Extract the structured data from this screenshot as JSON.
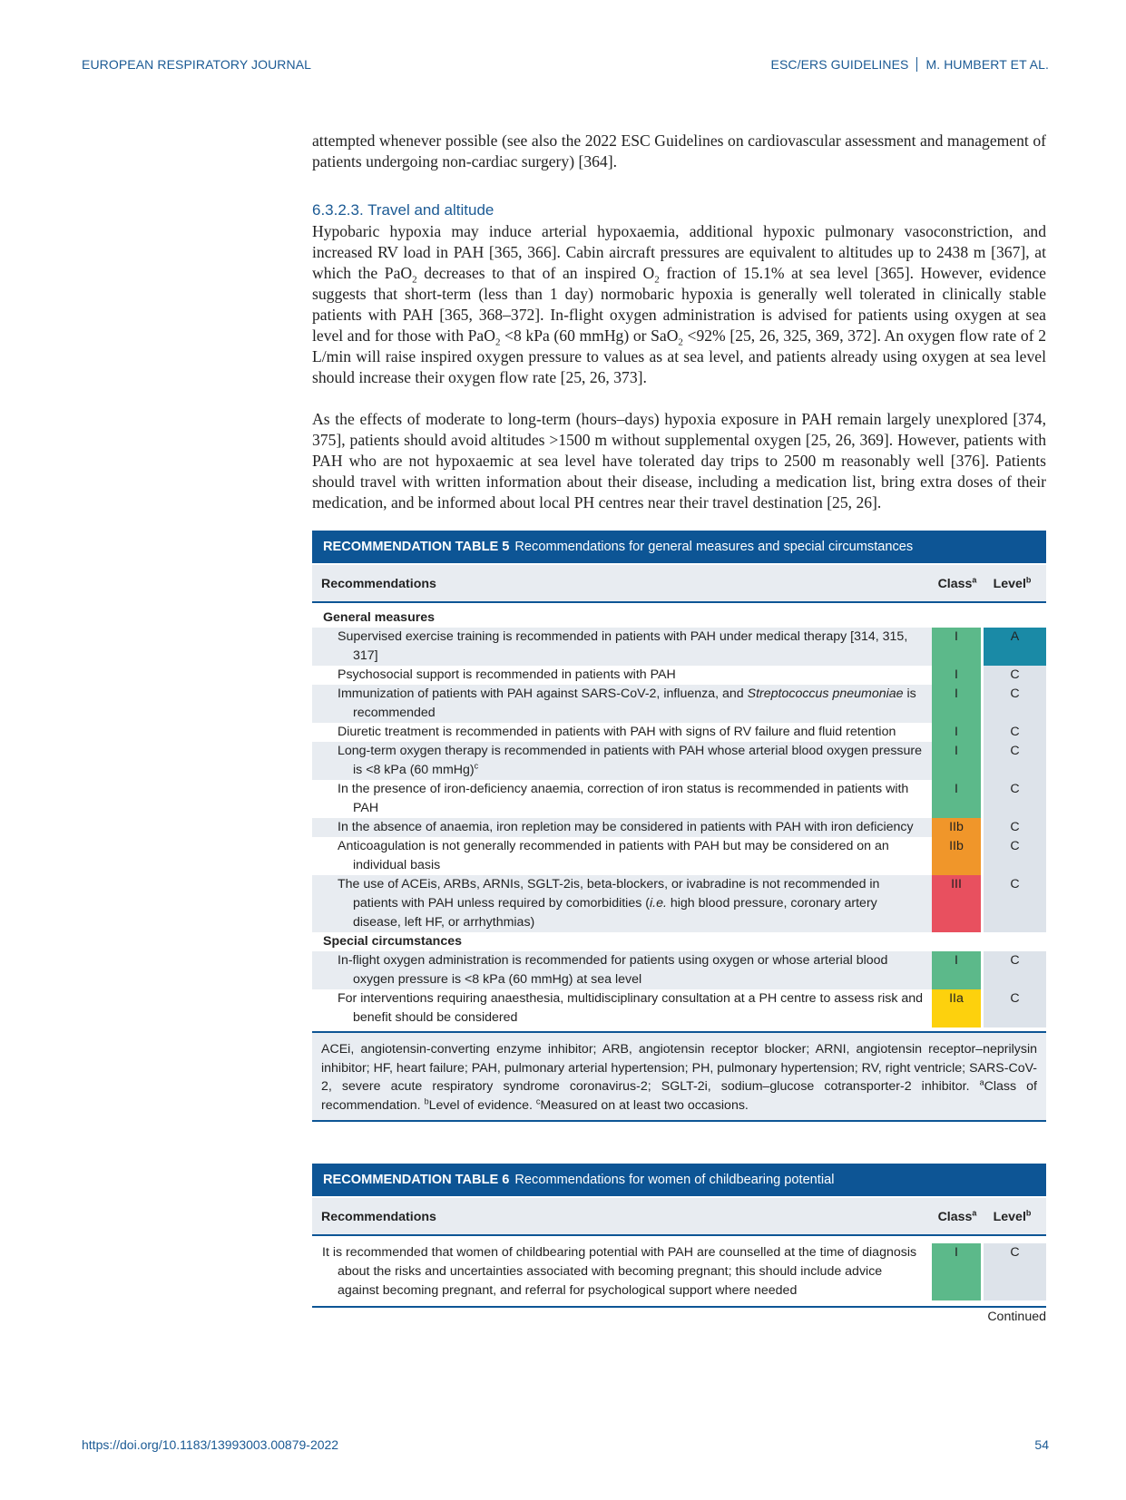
{
  "running_header": {
    "journal": "EUROPEAN RESPIRATORY JOURNAL",
    "section": "ESC/ERS GUIDELINES",
    "authors": "M. HUMBERT ET AL."
  },
  "body": {
    "para1": [
      {
        "t": "attempted whenever possible (see also the 2022 ESC Guidelines on cardiovascular assessment and management of patients undergoing non-cardiac surgery) [364]."
      }
    ],
    "heading": "6.3.2.3. Travel and altitude",
    "para2": [
      {
        "t": "Hypobaric hypoxia may induce arterial hypoxaemia, additional hypoxic pulmonary vasoconstriction, and increased RV load in PAH [365, 366]. Cabin aircraft pressures are equivalent to altitudes up to 2438 m [367], at which the PaO"
      },
      {
        "t": "2",
        "sub": true
      },
      {
        "t": " decreases to that of an inspired O"
      },
      {
        "t": "2",
        "sub": true
      },
      {
        "t": " fraction of 15.1% at sea level [365]. However, evidence suggests that short-term (less than 1 day) normobaric hypoxia is generally well tolerated in clinically stable patients with PAH [365, 368–372]. In-flight oxygen administration is advised for patients using oxygen at sea level and for those with PaO"
      },
      {
        "t": "2",
        "sub": true
      },
      {
        "t": " <8 kPa (60 mmHg) or SaO"
      },
      {
        "t": "2",
        "sub": true
      },
      {
        "t": " <92% [25, 26, 325, 369, 372]. An oxygen flow rate of 2 L/min will raise inspired oxygen pressure to values as at sea level, and patients already using oxygen at sea level should increase their oxygen flow rate [25, 26, 373]."
      }
    ],
    "para3": [
      {
        "t": "As the effects of moderate to long-term (hours–days) hypoxia exposure in PAH remain largely unexplored [374, 375], patients should avoid altitudes >1500 m without supplemental oxygen [25, 26, 369]. However, patients with PAH who are not hypoxaemic at sea level have tolerated day trips to 2500 m reasonably well [376]. Patients should travel with written information about their disease, including a medication list, bring extra doses of their medication, and be informed about local PH centres near their travel destination [25, 26]."
      }
    ]
  },
  "table5": {
    "label": "RECOMMENDATION TABLE 5",
    "title": "Recommendations for general measures and special circumstances",
    "col_recommendations": "Recommendations",
    "col_class": "Class",
    "col_class_sup": "a",
    "col_level": "Level",
    "col_level_sup": "b",
    "sections": [
      {
        "title": "General measures",
        "rows": [
          {
            "text": [
              {
                "t": "Supervised exercise training is recommended in patients with PAH under medical therapy [314, 315, 317]"
              }
            ],
            "class": "I",
            "level": "A"
          },
          {
            "text": [
              {
                "t": "Psychosocial support is recommended in patients with PAH"
              }
            ],
            "class": "I",
            "level": "C"
          },
          {
            "text": [
              {
                "t": "Immunization of patients with PAH against SARS-CoV-2, influenza, and "
              },
              {
                "t": "Streptococcus pneumoniae",
                "i": true
              },
              {
                "t": " is recommended"
              }
            ],
            "class": "I",
            "level": "C"
          },
          {
            "text": [
              {
                "t": "Diuretic treatment is recommended in patients with PAH with signs of RV failure and fluid retention"
              }
            ],
            "class": "I",
            "level": "C"
          },
          {
            "text": [
              {
                "t": "Long-term oxygen therapy is recommended in patients with PAH whose arterial blood oxygen pressure is <8 kPa (60 mmHg)"
              },
              {
                "t": "c",
                "sup": true
              }
            ],
            "class": "I",
            "level": "C"
          },
          {
            "text": [
              {
                "t": "In the presence of iron-deficiency anaemia, correction of iron status is recommended in patients with PAH"
              }
            ],
            "class": "I",
            "level": "C"
          },
          {
            "text": [
              {
                "t": "In the absence of anaemia, iron repletion may be considered in patients with PAH with iron deficiency"
              }
            ],
            "class": "IIb",
            "level": "C"
          },
          {
            "text": [
              {
                "t": "Anticoagulation is not generally recommended in patients with PAH but may be considered on an individual basis"
              }
            ],
            "class": "IIb",
            "level": "C"
          },
          {
            "text": [
              {
                "t": "The use of ACEis, ARBs, ARNIs, SGLT-2is, beta-blockers, or ivabradine is not recommended in patients with PAH unless required by comorbidities ("
              },
              {
                "t": "i.e.",
                "i": true
              },
              {
                "t": " high blood pressure, coronary artery disease, left HF, or arrhythmias)"
              }
            ],
            "class": "III",
            "level": "C"
          }
        ]
      },
      {
        "title": "Special circumstances",
        "rows": [
          {
            "text": [
              {
                "t": "In-flight oxygen administration is recommended for patients using oxygen or whose arterial blood oxygen pressure is <8 kPa (60 mmHg) at sea level"
              }
            ],
            "class": "I",
            "level": "C"
          },
          {
            "text": [
              {
                "t": "For interventions requiring anaesthesia, multidisciplinary consultation at a PH centre to assess risk and benefit should be considered"
              }
            ],
            "class": "IIa",
            "level": "C"
          }
        ]
      }
    ],
    "footnote": [
      {
        "t": "ACEi, angiotensin-converting enzyme inhibitor; ARB, angiotensin receptor blocker; ARNI, angiotensin receptor–neprilysin inhibitor; HF, heart failure; PAH, pulmonary arterial hypertension; PH, pulmonary hypertension; RV, right ventricle; SARS-CoV-2, severe acute respiratory syndrome coronavirus-2; SGLT-2i, sodium–glucose cotransporter-2 inhibitor. "
      },
      {
        "t": "a",
        "sup": true
      },
      {
        "t": "Class of recommendation. "
      },
      {
        "t": "b",
        "sup": true
      },
      {
        "t": "Level of evidence. "
      },
      {
        "t": "c",
        "sup": true
      },
      {
        "t": "Measured on at least two occasions."
      }
    ]
  },
  "table6": {
    "label": "RECOMMENDATION TABLE 6",
    "title": "Recommendations for women of childbearing potential",
    "col_recommendations": "Recommendations",
    "col_class": "Class",
    "col_class_sup": "a",
    "col_level": "Level",
    "col_level_sup": "b",
    "rows": [
      {
        "text": [
          {
            "t": "It is recommended that women of childbearing potential with PAH are counselled at the time of diagnosis about the risks and uncertainties associated with becoming pregnant; this should include advice against becoming pregnant, and referral for psychological support where needed"
          }
        ],
        "class": "I",
        "level": "C"
      }
    ],
    "continued": "Continued"
  },
  "footer": {
    "doi": "https://doi.org/10.1183/13993003.00879-2022",
    "page": "54"
  },
  "colors": {
    "brand_blue": "#0d5595",
    "class_I": "#5cb98a",
    "class_IIa": "#fdd10d",
    "class_IIb": "#f0962a",
    "class_III": "#e8505f",
    "level_A": "#1a8aa6",
    "level_default": "#dde3ea"
  }
}
